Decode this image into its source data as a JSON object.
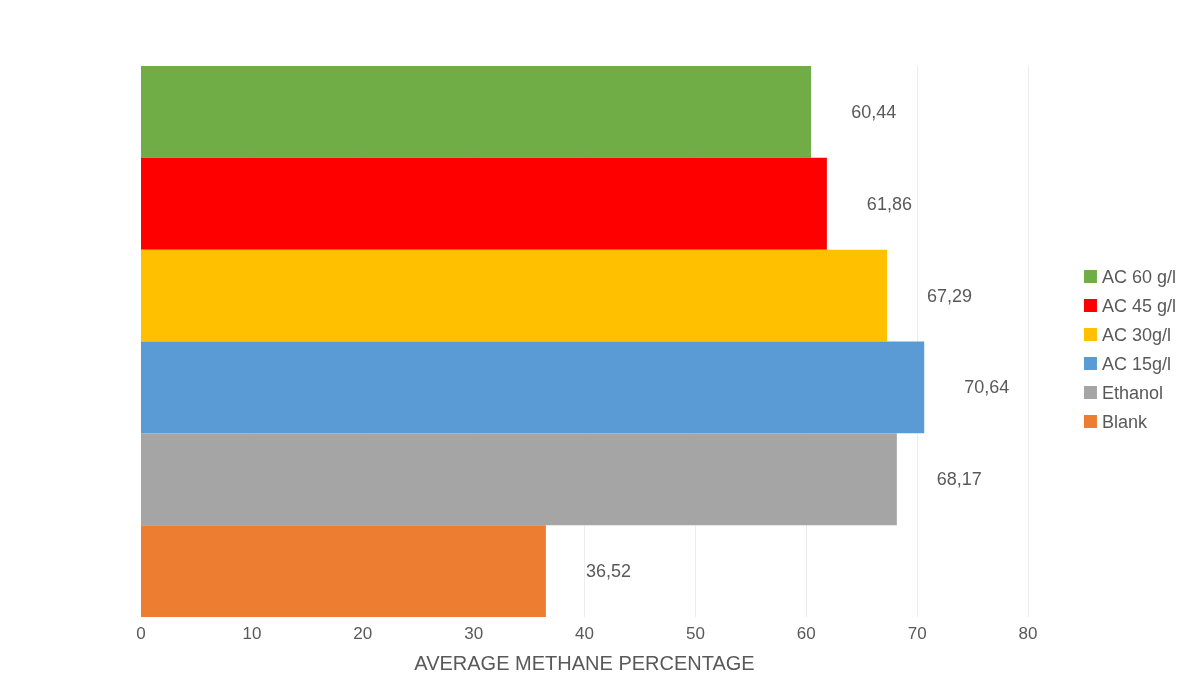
{
  "chart_data": {
    "type": "bar",
    "orientation": "horizontal",
    "xlabel": "AVERAGE METHANE PERCENTAGE",
    "categories": [
      null,
      null,
      null,
      null,
      null,
      null
    ],
    "series": [
      {
        "name": "AC 60 g/l",
        "color": "#70ad47",
        "values": [
          60.44,
          null,
          null,
          null,
          null,
          null
        ],
        "value_labels": [
          "60,44",
          null,
          null,
          null,
          null,
          null
        ]
      },
      {
        "name": "AC 45 g/l",
        "color": "#ff0000",
        "values": [
          null,
          61.86,
          null,
          null,
          null,
          null
        ],
        "value_labels": [
          null,
          "61,86",
          null,
          null,
          null,
          null
        ]
      },
      {
        "name": "AC 30g/l",
        "color": "#ffc000",
        "values": [
          null,
          null,
          67.29,
          null,
          null,
          null
        ],
        "value_labels": [
          null,
          null,
          "67,29",
          null,
          null,
          null
        ]
      },
      {
        "name": "AC 15g/l",
        "color": "#5b9bd5",
        "values": [
          null,
          null,
          null,
          70.64,
          null,
          null
        ],
        "value_labels": [
          null,
          null,
          null,
          "70,64",
          null,
          null
        ]
      },
      {
        "name": "Ethanol",
        "color": "#a5a5a5",
        "values": [
          null,
          null,
          null,
          null,
          68.17,
          null
        ],
        "value_labels": [
          null,
          null,
          null,
          null,
          "68,17",
          null
        ]
      },
      {
        "name": "Blank",
        "color": "#ed7d31",
        "values": [
          null,
          null,
          null,
          null,
          null,
          36.52
        ],
        "value_labels": [
          null,
          null,
          null,
          null,
          null,
          "36,52"
        ]
      }
    ],
    "xlim": [
      0,
      80
    ],
    "xticks": [
      0,
      10,
      20,
      30,
      40,
      50,
      60,
      70,
      80
    ],
    "grid": "x",
    "legend": "right"
  }
}
